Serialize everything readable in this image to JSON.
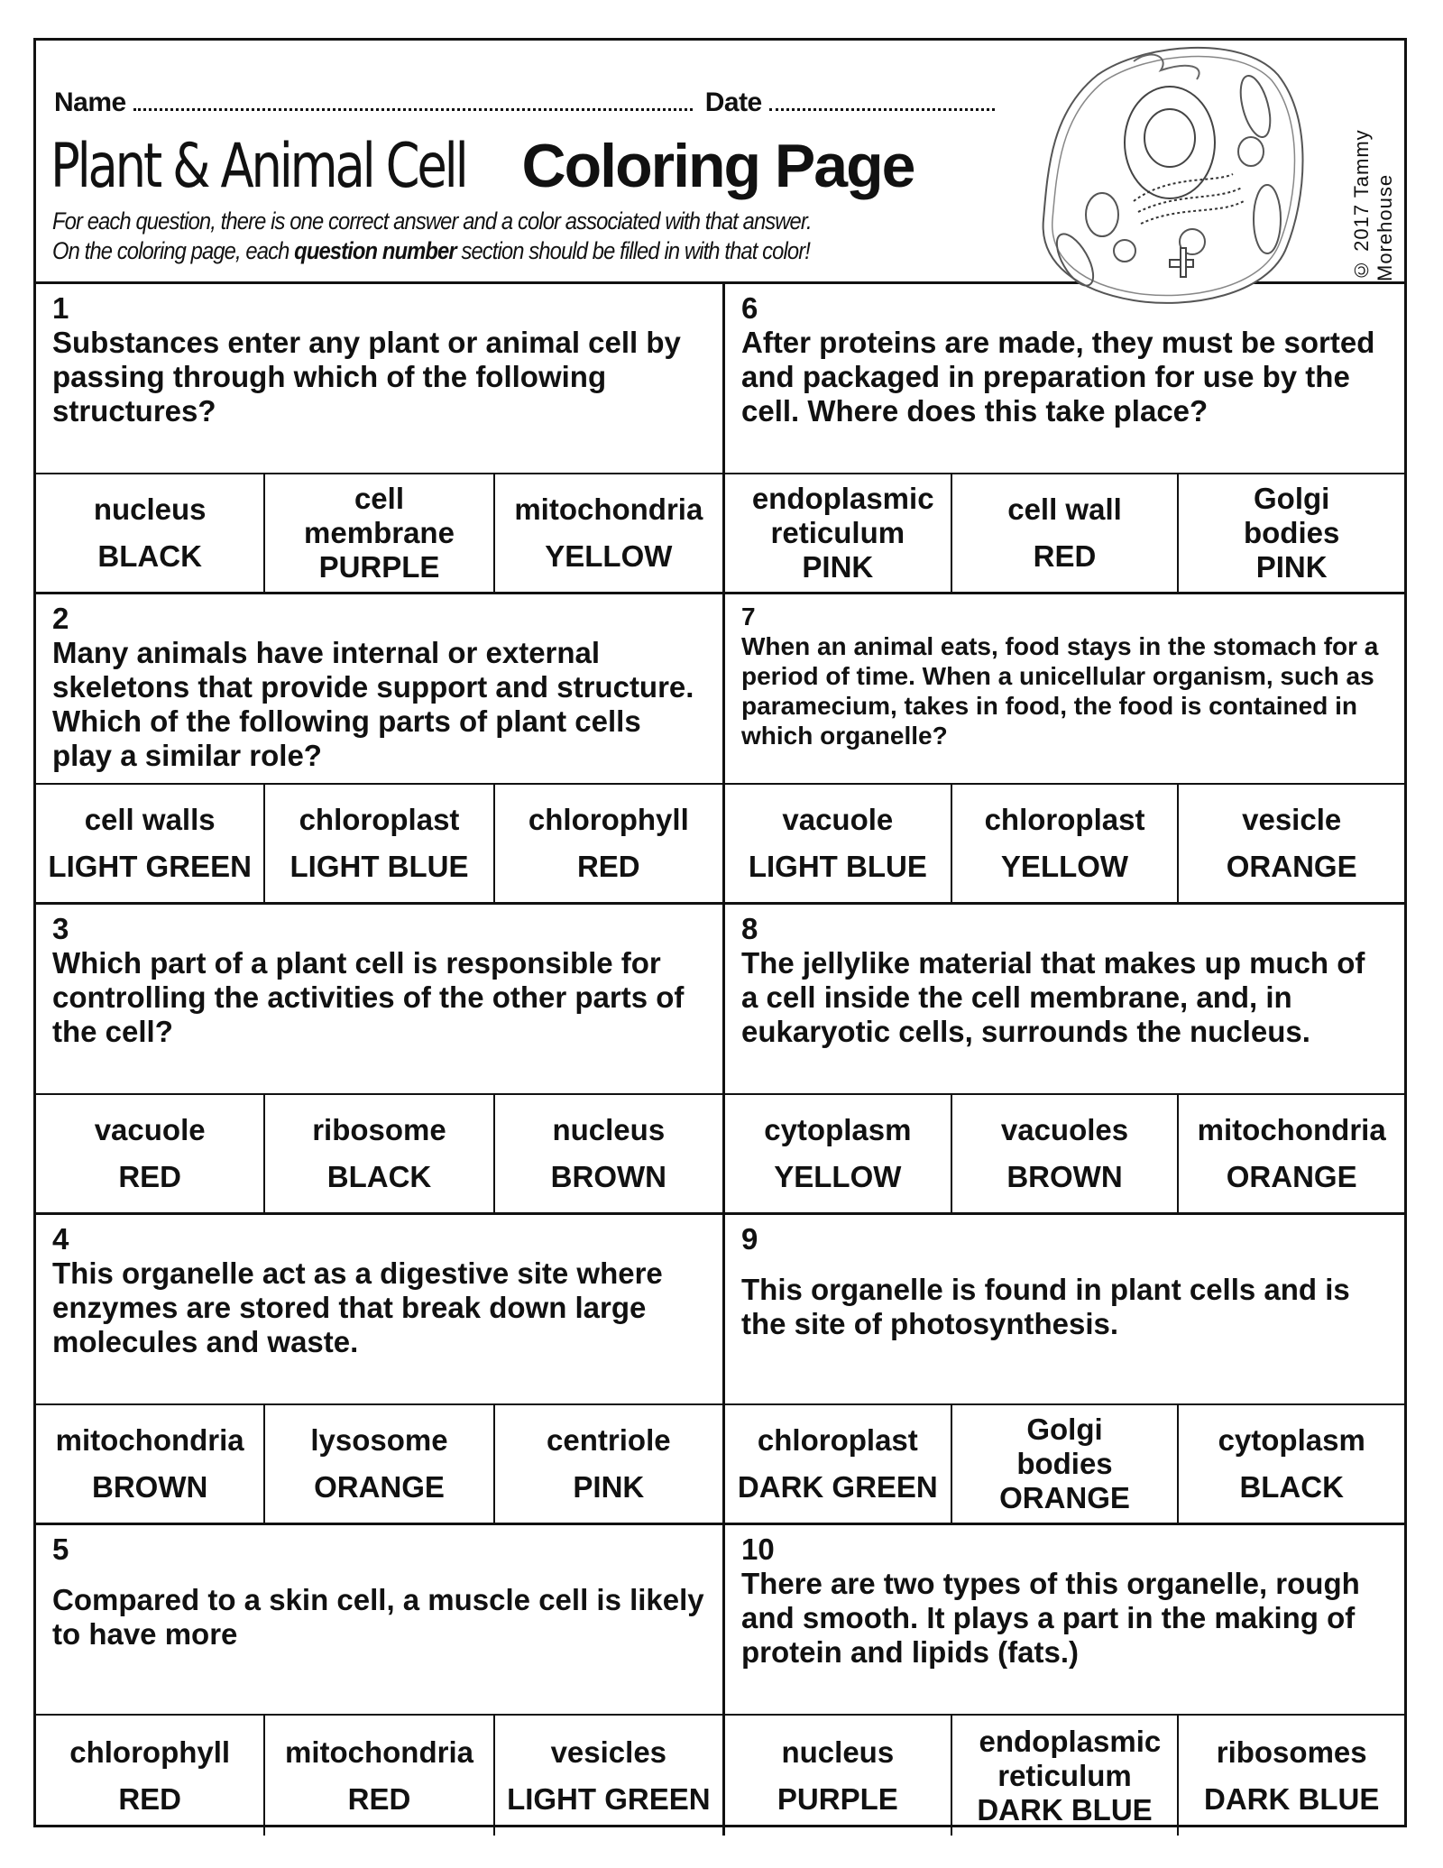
{
  "header": {
    "name_label": "Name",
    "date_label": "Date",
    "title_script": "Plant & Animal Cell",
    "title_bold": "Coloring Page",
    "instructions_line1": "For each question, there is one correct answer and a color associated with that answer.",
    "instructions_line2_a": "On the coloring page, each",
    "instructions_line2_b": "question number",
    "instructions_line2_c": "section should be filled in with that color!",
    "copyright": "© 2017 Tammy Morehouse"
  },
  "questions": [
    {
      "num": "1",
      "text": "Substances enter any plant or animal cell by passing through which of the following structures?",
      "answers": [
        {
          "term": "nucleus",
          "color": "BLACK"
        },
        {
          "term": "cell membrane",
          "color": "PURPLE"
        },
        {
          "term": "mitochondria",
          "color": "YELLOW"
        }
      ]
    },
    {
      "num": "2",
      "text": "Many animals have internal or external skeletons that provide support and structure. Which of the following parts of plant cells play a similar role?",
      "answers": [
        {
          "term": "cell walls",
          "color": "LIGHT GREEN"
        },
        {
          "term": "chloroplast",
          "color": "LIGHT BLUE"
        },
        {
          "term": "chlorophyll",
          "color": "RED"
        }
      ]
    },
    {
      "num": "3",
      "text": "Which part of a plant cell is responsible for controlling the activities of the other parts of the cell?",
      "answers": [
        {
          "term": "vacuole",
          "color": "RED"
        },
        {
          "term": "ribosome",
          "color": "BLACK"
        },
        {
          "term": "nucleus",
          "color": "BROWN"
        }
      ]
    },
    {
      "num": "4",
      "text": "This organelle act as a digestive site where enzymes are stored that break down large molecules and waste.",
      "answers": [
        {
          "term": "mitochondria",
          "color": "BROWN"
        },
        {
          "term": "lysosome",
          "color": "ORANGE"
        },
        {
          "term": "centriole",
          "color": "PINK"
        }
      ]
    },
    {
      "num": "5",
      "text": "Compared to a skin cell, a muscle cell is likely to have more",
      "answers": [
        {
          "term": "chlorophyll",
          "color": "RED"
        },
        {
          "term": "mitochondria",
          "color": "RED"
        },
        {
          "term": "vesicles",
          "color": "LIGHT GREEN"
        }
      ]
    },
    {
      "num": "6",
      "text": "After proteins are made, they must be sorted and packaged in preparation for use by the cell. Where does this take place?",
      "answers": [
        {
          "term": "endoplasmic reticulum",
          "color": "PINK"
        },
        {
          "term": "cell wall",
          "color": "RED"
        },
        {
          "term": "Golgi bodies",
          "color": "PINK"
        }
      ]
    },
    {
      "num": "7",
      "text": "When an animal eats, food stays in the stomach for a period of time. When a unicellular organism, such as paramecium, takes in food, the food is contained in which organelle?",
      "answers": [
        {
          "term": "vacuole",
          "color": "LIGHT BLUE"
        },
        {
          "term": "chloroplast",
          "color": "YELLOW"
        },
        {
          "term": "vesicle",
          "color": "ORANGE"
        }
      ]
    },
    {
      "num": "8",
      "text": "The jellylike material that makes up much of a cell inside the cell membrane, and, in eukaryotic cells, surrounds the nucleus.",
      "answers": [
        {
          "term": "cytoplasm",
          "color": "YELLOW"
        },
        {
          "term": "vacuoles",
          "color": "BROWN"
        },
        {
          "term": "mitochondria",
          "color": "ORANGE"
        }
      ]
    },
    {
      "num": "9",
      "text": "This organelle is found in plant cells and is the site of photosynthesis.",
      "answers": [
        {
          "term": "chloroplast",
          "color": "DARK GREEN"
        },
        {
          "term": "Golgi bodies",
          "color": "ORANGE"
        },
        {
          "term": "cytoplasm",
          "color": "BLACK"
        }
      ]
    },
    {
      "num": "10",
      "text": "There are two types of this organelle, rough and smooth. It plays a part in the making of protein and lipids (fats.)",
      "answers": [
        {
          "term": "nucleus",
          "color": "PURPLE"
        },
        {
          "term": "endoplasmic reticulum",
          "color": "DARK BLUE"
        },
        {
          "term": "ribosomes",
          "color": "DARK BLUE"
        }
      ]
    }
  ]
}
